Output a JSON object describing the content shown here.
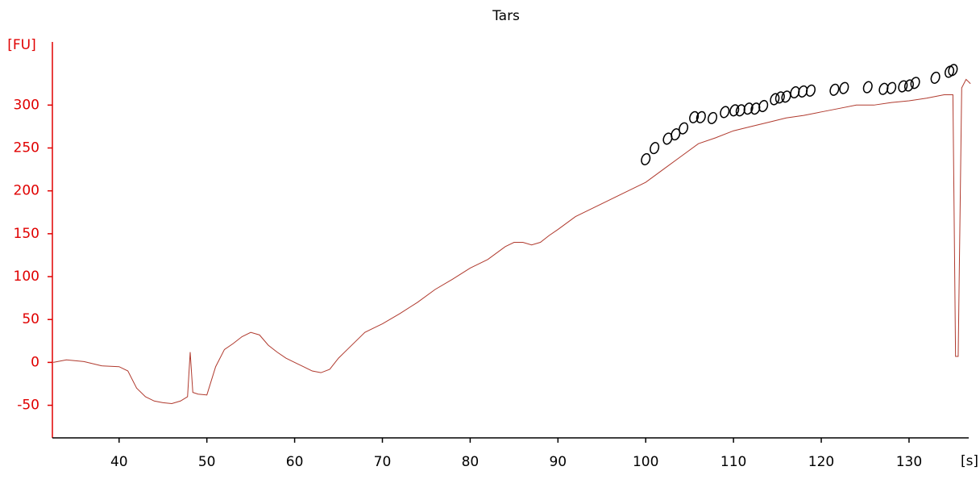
{
  "chart_data": {
    "type": "line",
    "title": "Tars",
    "y_label": "[FU]",
    "x_label": "[s]",
    "xlim": [
      32.4,
      136.8
    ],
    "ylim": [
      -88,
      352
    ],
    "xticks": [
      40,
      50,
      60,
      70,
      80,
      90,
      100,
      110,
      120,
      130
    ],
    "yticks": [
      -50,
      0,
      50,
      100,
      150,
      200,
      250,
      300
    ],
    "series": [
      {
        "name": "Tars",
        "color": "#b03a2e",
        "x": [
          32.5,
          34,
          36,
          38,
          40,
          41,
          42,
          43,
          44,
          45,
          46,
          47,
          47.8,
          48.1,
          48.4,
          49,
          50,
          51,
          52,
          53,
          54,
          55,
          56,
          57,
          58,
          59,
          60,
          61,
          62,
          63,
          64,
          65,
          66,
          67,
          68,
          69,
          70,
          72,
          74,
          76,
          78,
          80,
          82,
          84,
          85,
          86,
          87,
          88,
          89,
          90,
          92,
          94,
          96,
          98,
          100,
          102,
          104,
          106,
          108,
          110,
          112,
          114,
          116,
          118,
          120,
          122,
          124,
          126,
          128,
          130,
          132,
          134,
          135,
          135.3,
          135.6,
          136,
          136.5,
          137
        ],
        "values": [
          0,
          3,
          1,
          -4,
          -5,
          -10,
          -30,
          -40,
          -45,
          -47,
          -48,
          -45,
          -40,
          12,
          -35,
          -37,
          -38,
          -5,
          15,
          22,
          30,
          35,
          32,
          20,
          12,
          5,
          0,
          -5,
          -10,
          -12,
          -8,
          5,
          15,
          25,
          35,
          40,
          45,
          57,
          70,
          85,
          97,
          110,
          120,
          135,
          140,
          140,
          137,
          140,
          148,
          155,
          170,
          180,
          190,
          200,
          210,
          225,
          240,
          255,
          262,
          270,
          275,
          280,
          285,
          288,
          292,
          296,
          300,
          300,
          303,
          305,
          308,
          312,
          312,
          7,
          7,
          320,
          330,
          325
        ]
      }
    ],
    "peaks": {
      "x": [
        100.0,
        101.0,
        102.5,
        103.4,
        104.3,
        105.5,
        106.3,
        107.6,
        109.0,
        110.1,
        110.8,
        111.7,
        112.5,
        113.4,
        114.7,
        115.3,
        116.0,
        117.0,
        117.9,
        118.8,
        121.5,
        122.6,
        125.3,
        127.1,
        128.0,
        129.3,
        130.0,
        130.7,
        133.0,
        134.6,
        135.0
      ],
      "values": [
        235,
        248,
        259,
        264,
        271,
        284,
        284,
        283,
        290,
        292,
        292,
        294,
        294,
        297,
        305,
        307,
        308,
        313,
        314,
        315,
        316,
        318,
        319,
        317,
        318,
        320,
        321,
        324,
        330,
        337,
        339
      ]
    }
  }
}
